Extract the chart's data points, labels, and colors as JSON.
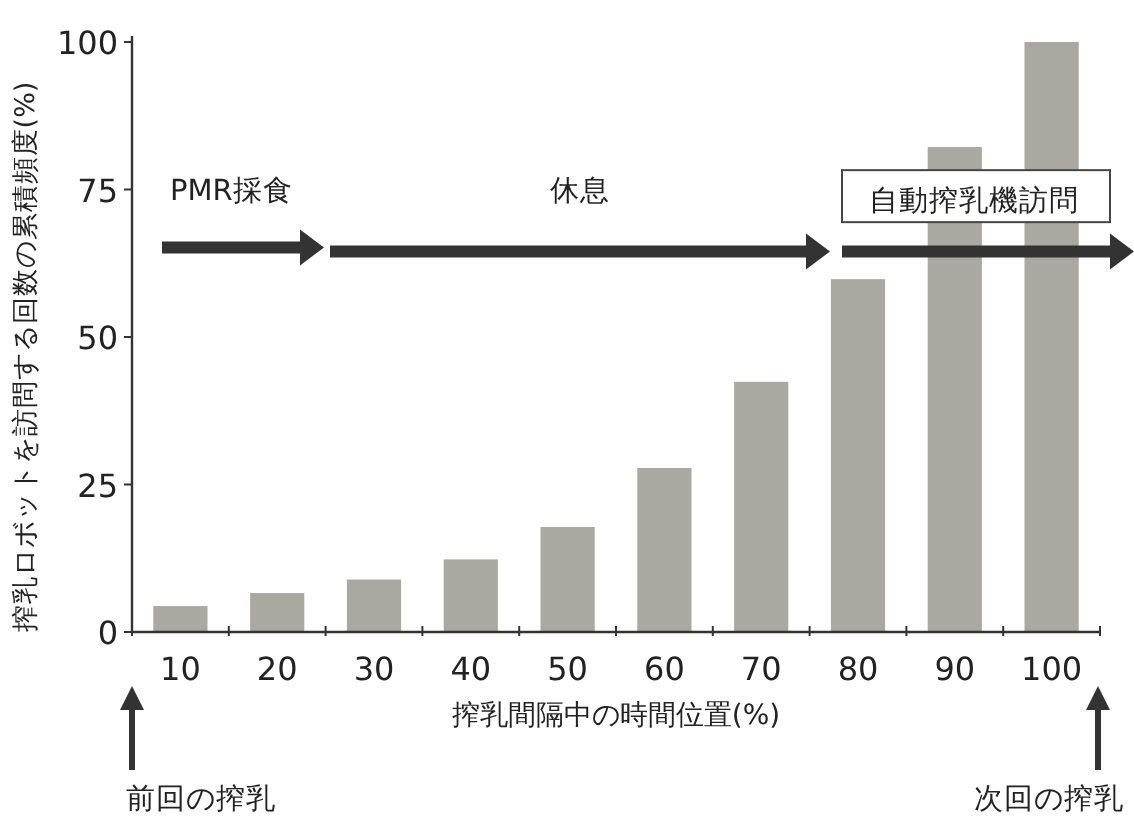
{
  "chart_data": {
    "type": "bar",
    "xlabel": "搾乳間隔中の時間位置(%)",
    "ylabel": "搾乳ロボットを訪問する回数の累積頻度(%)",
    "categories": [
      "10",
      "20",
      "30",
      "40",
      "50",
      "60",
      "70",
      "80",
      "90",
      "100"
    ],
    "values": [
      4.4,
      6.6,
      8.9,
      12.3,
      17.8,
      27.8,
      42.4,
      59.8,
      82.2,
      100
    ],
    "color": "#a9a9a1",
    "ylim": [
      0,
      100
    ],
    "yticks": [
      0,
      25,
      50,
      75,
      100
    ],
    "grid": false,
    "annotations": [
      "PMR採食",
      "休息",
      "自動搾乳機訪問",
      "前回の搾乳",
      "次回の搾乳"
    ]
  }
}
